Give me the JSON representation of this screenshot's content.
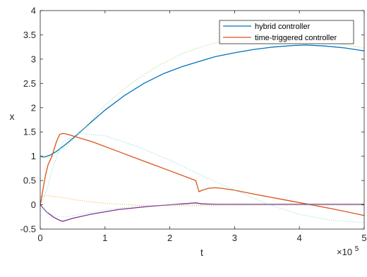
{
  "chart_data": {
    "type": "line",
    "xlabel": "t",
    "ylabel": "x",
    "x_exponent_label": "×10",
    "x_exponent_power": "5",
    "xlim": [
      0,
      500000
    ],
    "ylim": [
      -0.5,
      4
    ],
    "grid": false,
    "legend_position": "top-right",
    "x_ticks": [
      0,
      100000,
      200000,
      300000,
      400000,
      500000
    ],
    "x_tick_labels": [
      "0",
      "1",
      "2",
      "3",
      "4",
      "5"
    ],
    "y_ticks": [
      -0.5,
      0,
      0.5,
      1,
      1.5,
      2,
      2.5,
      3,
      3.5,
      4
    ],
    "y_tick_labels": [
      "-0.5",
      "0",
      "0.5",
      "1",
      "1.5",
      "2",
      "2.5",
      "3",
      "3.5",
      "4"
    ],
    "series": [
      {
        "name": "hybrid controller",
        "color": "#0072BD",
        "style": "solid",
        "x": [
          0,
          5000,
          15000,
          25000,
          40000,
          60000,
          80000,
          100000,
          130000,
          160000,
          190000,
          220000,
          245000,
          270000,
          300000,
          330000,
          360000,
          390000,
          410000,
          440000,
          470000,
          500000
        ],
        "y": [
          1.0,
          0.98,
          1.02,
          1.1,
          1.25,
          1.48,
          1.72,
          1.95,
          2.25,
          2.5,
          2.7,
          2.85,
          2.95,
          3.05,
          3.13,
          3.2,
          3.25,
          3.28,
          3.29,
          3.27,
          3.23,
          3.17
        ]
      },
      {
        "name": "time-triggered controller",
        "color": "#D95319",
        "style": "solid",
        "x": [
          0,
          4000,
          8000,
          12000,
          18000,
          25000,
          30000,
          35000,
          40000,
          80000,
          120000,
          160000,
          200000,
          240000,
          245000,
          250000,
          260000,
          270000,
          280000,
          300000,
          330000,
          370000,
          410000,
          450000,
          500000
        ],
        "y": [
          -0.02,
          0.3,
          0.6,
          0.82,
          1.0,
          1.3,
          1.45,
          1.47,
          1.46,
          1.3,
          1.1,
          0.9,
          0.7,
          0.5,
          0.27,
          0.3,
          0.34,
          0.35,
          0.34,
          0.3,
          0.22,
          0.12,
          0.02,
          -0.08,
          -0.22
        ]
      },
      {
        "color": "#EDB120",
        "style": "dotted",
        "x": [
          0,
          10000,
          30000,
          60000,
          100000,
          150000,
          200000,
          250000,
          300000,
          350000,
          400000,
          450000,
          500000
        ],
        "y": [
          0.17,
          0.19,
          0.16,
          0.09,
          0.03,
          -0.01,
          -0.02,
          -0.02,
          -0.01,
          -0.01,
          -0.01,
          -0.01,
          -0.01
        ]
      },
      {
        "color": "#7E2F8E",
        "style": "solid",
        "x": [
          0,
          10000,
          20000,
          30000,
          35000,
          50000,
          80000,
          120000,
          170000,
          220000,
          240000,
          250000,
          270000,
          300000,
          350000,
          400000,
          450000,
          500000
        ],
        "y": [
          0.0,
          -0.15,
          -0.25,
          -0.32,
          -0.34,
          -0.28,
          -0.19,
          -0.1,
          -0.03,
          0.02,
          0.04,
          0.02,
          0.01,
          0.01,
          0.01,
          0.01,
          0.01,
          0.01
        ]
      },
      {
        "color": "#A8D26E",
        "style": "dotted",
        "x": [
          0,
          10000,
          20000,
          40000,
          70000,
          100000,
          140000,
          180000,
          220000,
          260000,
          300000,
          340000,
          380000,
          420000,
          460000,
          500000
        ],
        "y": [
          1.0,
          0.97,
          1.0,
          1.2,
          1.6,
          2.05,
          2.5,
          2.85,
          3.12,
          3.3,
          3.42,
          3.48,
          3.47,
          3.4,
          3.32,
          3.23
        ]
      },
      {
        "color": "#7FD4D6",
        "style": "dotted",
        "x": [
          0,
          10000,
          20000,
          35000,
          60000,
          100000,
          150000,
          200000,
          250000,
          300000,
          350000,
          400000,
          450000,
          500000
        ],
        "y": [
          0.0,
          0.3,
          0.8,
          1.3,
          1.47,
          1.42,
          1.2,
          0.92,
          0.6,
          0.3,
          0.02,
          -0.2,
          -0.32,
          -0.37
        ]
      },
      {
        "color": "#9FD6DC",
        "style": "dotted",
        "x": [
          0,
          10000,
          25000,
          40000,
          60000,
          100000,
          150000,
          200000,
          250000,
          300000,
          350000,
          400000,
          450000,
          500000
        ],
        "y": [
          0.0,
          -0.15,
          -0.24,
          -0.25,
          -0.2,
          -0.1,
          -0.03,
          0.0,
          0.0,
          0.0,
          0.0,
          0.0,
          0.0,
          0.0
        ]
      }
    ]
  }
}
